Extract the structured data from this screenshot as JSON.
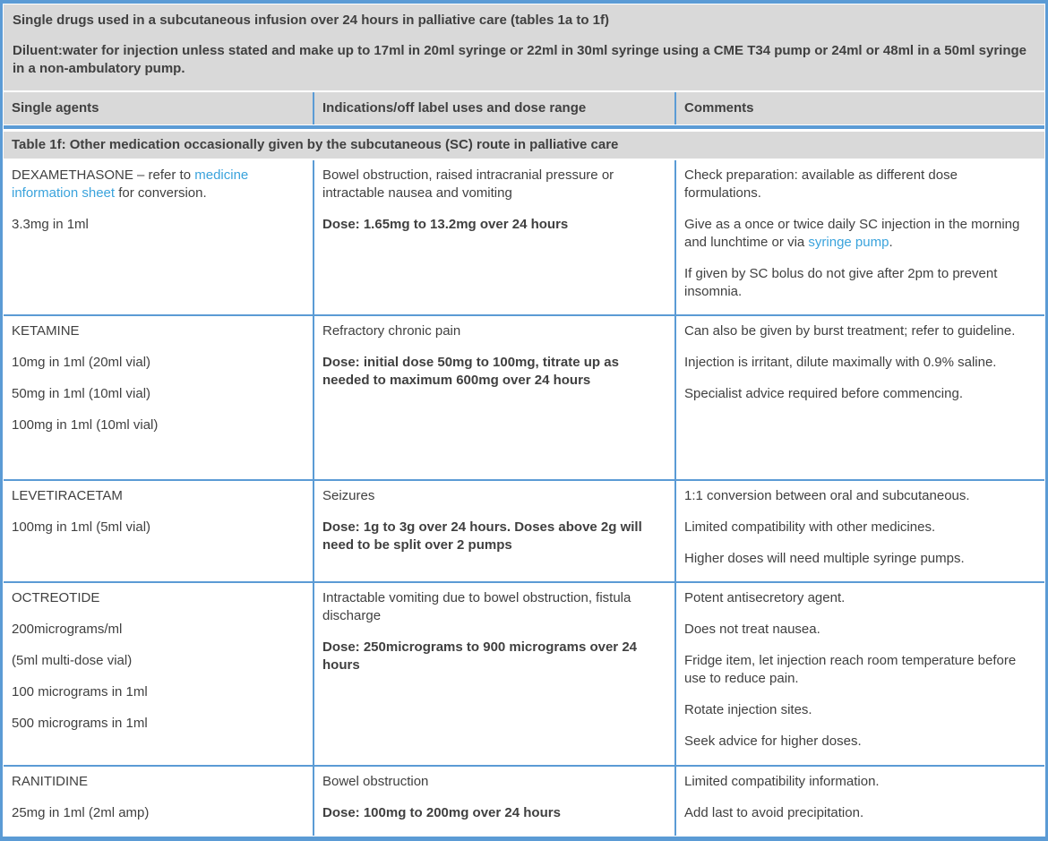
{
  "colors": {
    "accent_border": "#5B9BD5",
    "header_bg": "#D9D9D9",
    "body_bg": "#FFFFFF",
    "text": "#404040",
    "link": "#3AA3DC"
  },
  "intro": {
    "line1": "Single drugs used in a subcutaneous infusion over 24 hours in palliative care (tables 1a to 1f)",
    "line2": "Diluent:water for injection unless stated and make up to 17ml in 20ml syringe or 22ml in 30ml syringe using a CME T34 pump or 24ml or 48ml in a 50ml syringe in a non-ambulatory pump."
  },
  "columns": [
    "Single agents",
    "Indications/off label uses and dose range",
    "Comments"
  ],
  "section_title": "Table 1f: Other medication occasionally given by the subcutaneous (SC) route in palliative care",
  "rows": [
    {
      "agent": [
        {
          "segments": [
            {
              "t": "DEXAMETHASONE – refer to "
            },
            {
              "t": "medicine information sheet",
              "link": "medicine-information-sheet-link"
            },
            {
              "t": " for conversion."
            }
          ]
        },
        {
          "segments": [
            {
              "t": "3.3mg in 1ml"
            }
          ]
        }
      ],
      "indications": [
        {
          "segments": [
            {
              "t": "Bowel obstruction, raised intracranial pressure or intractable nausea and vomiting"
            }
          ]
        },
        {
          "bold": true,
          "segments": [
            {
              "t": "Dose: 1.65mg to 13.2mg over 24 hours"
            }
          ]
        }
      ],
      "comments": [
        {
          "segments": [
            {
              "t": "Check preparation: available as different dose formulations."
            }
          ]
        },
        {
          "segments": [
            {
              "t": "Give as a once or twice daily SC injection in the morning and lunchtime or via "
            },
            {
              "t": "syringe pump",
              "link": "syringe-pump-link"
            },
            {
              "t": "."
            }
          ]
        },
        {
          "segments": [
            {
              "t": "If given by SC bolus do not give after 2pm to prevent insomnia."
            }
          ]
        }
      ]
    },
    {
      "agent": [
        {
          "segments": [
            {
              "t": "KETAMINE"
            }
          ]
        },
        {
          "segments": [
            {
              "t": "10mg in 1ml (20ml vial)"
            }
          ]
        },
        {
          "segments": [
            {
              "t": "50mg in 1ml (10ml vial)"
            }
          ]
        },
        {
          "segments": [
            {
              "t": "100mg in 1ml (10ml vial)"
            }
          ]
        }
      ],
      "indications": [
        {
          "segments": [
            {
              "t": "Refractory chronic pain"
            }
          ]
        },
        {
          "bold": true,
          "segments": [
            {
              "t": "Dose: initial dose 50mg to 100mg, titrate up as needed to maximum 600mg over 24 hours"
            }
          ]
        }
      ],
      "comments": [
        {
          "segments": [
            {
              "t": "Can also be given by burst treatment; refer to guideline."
            }
          ]
        },
        {
          "segments": [
            {
              "t": "Injection is irritant, dilute maximally with 0.9% saline."
            }
          ]
        },
        {
          "segments": [
            {
              "t": "Specialist advice required before commencing."
            }
          ]
        }
      ]
    },
    {
      "agent": [
        {
          "segments": [
            {
              "t": "LEVETIRACETAM"
            }
          ]
        },
        {
          "segments": [
            {
              "t": "100mg in 1ml (5ml vial)"
            }
          ]
        }
      ],
      "indications": [
        {
          "segments": [
            {
              "t": "Seizures"
            }
          ]
        },
        {
          "bold": true,
          "segments": [
            {
              "t": "Dose: 1g to 3g over 24 hours. Doses above 2g will need to be split over 2 pumps"
            }
          ]
        }
      ],
      "comments": [
        {
          "segments": [
            {
              "t": "1:1 conversion between oral and subcutaneous."
            }
          ]
        },
        {
          "segments": [
            {
              "t": "Limited compatibility with other medicines."
            }
          ]
        },
        {
          "segments": [
            {
              "t": "Higher doses will need multiple syringe pumps."
            }
          ]
        }
      ]
    },
    {
      "agent": [
        {
          "segments": [
            {
              "t": "OCTREOTIDE"
            }
          ]
        },
        {
          "segments": [
            {
              "t": "200micrograms/ml"
            }
          ]
        },
        {
          "segments": [
            {
              "t": "(5ml multi-dose vial)"
            }
          ]
        },
        {
          "segments": [
            {
              "t": "100 micrograms in 1ml"
            }
          ]
        },
        {
          "segments": [
            {
              "t": "500 micrograms in 1ml"
            }
          ]
        }
      ],
      "indications": [
        {
          "segments": [
            {
              "t": "Intractable vomiting due to bowel obstruction, fistula discharge"
            }
          ]
        },
        {
          "bold": true,
          "segments": [
            {
              "t": "Dose: 250micrograms to 900 micrograms over 24 hours"
            }
          ]
        }
      ],
      "comments": [
        {
          "segments": [
            {
              "t": "Potent antisecretory agent."
            }
          ]
        },
        {
          "segments": [
            {
              "t": "Does not treat nausea."
            }
          ]
        },
        {
          "segments": [
            {
              "t": "Fridge item, let injection reach room temperature before use to reduce pain."
            }
          ]
        },
        {
          "segments": [
            {
              "t": "Rotate injection sites."
            }
          ]
        },
        {
          "segments": [
            {
              "t": "Seek advice for higher doses."
            }
          ]
        }
      ]
    },
    {
      "agent": [
        {
          "segments": [
            {
              "t": "RANITIDINE"
            }
          ]
        },
        {
          "segments": [
            {
              "t": "25mg in 1ml (2ml amp)"
            }
          ]
        }
      ],
      "indications": [
        {
          "segments": [
            {
              "t": "Bowel obstruction"
            }
          ]
        },
        {
          "bold": true,
          "segments": [
            {
              "t": "Dose: 100mg to 200mg over 24 hours"
            }
          ]
        }
      ],
      "comments": [
        {
          "segments": [
            {
              "t": "Limited compatibility information."
            }
          ]
        },
        {
          "segments": [
            {
              "t": "Add last to avoid precipitation."
            }
          ]
        }
      ]
    }
  ]
}
